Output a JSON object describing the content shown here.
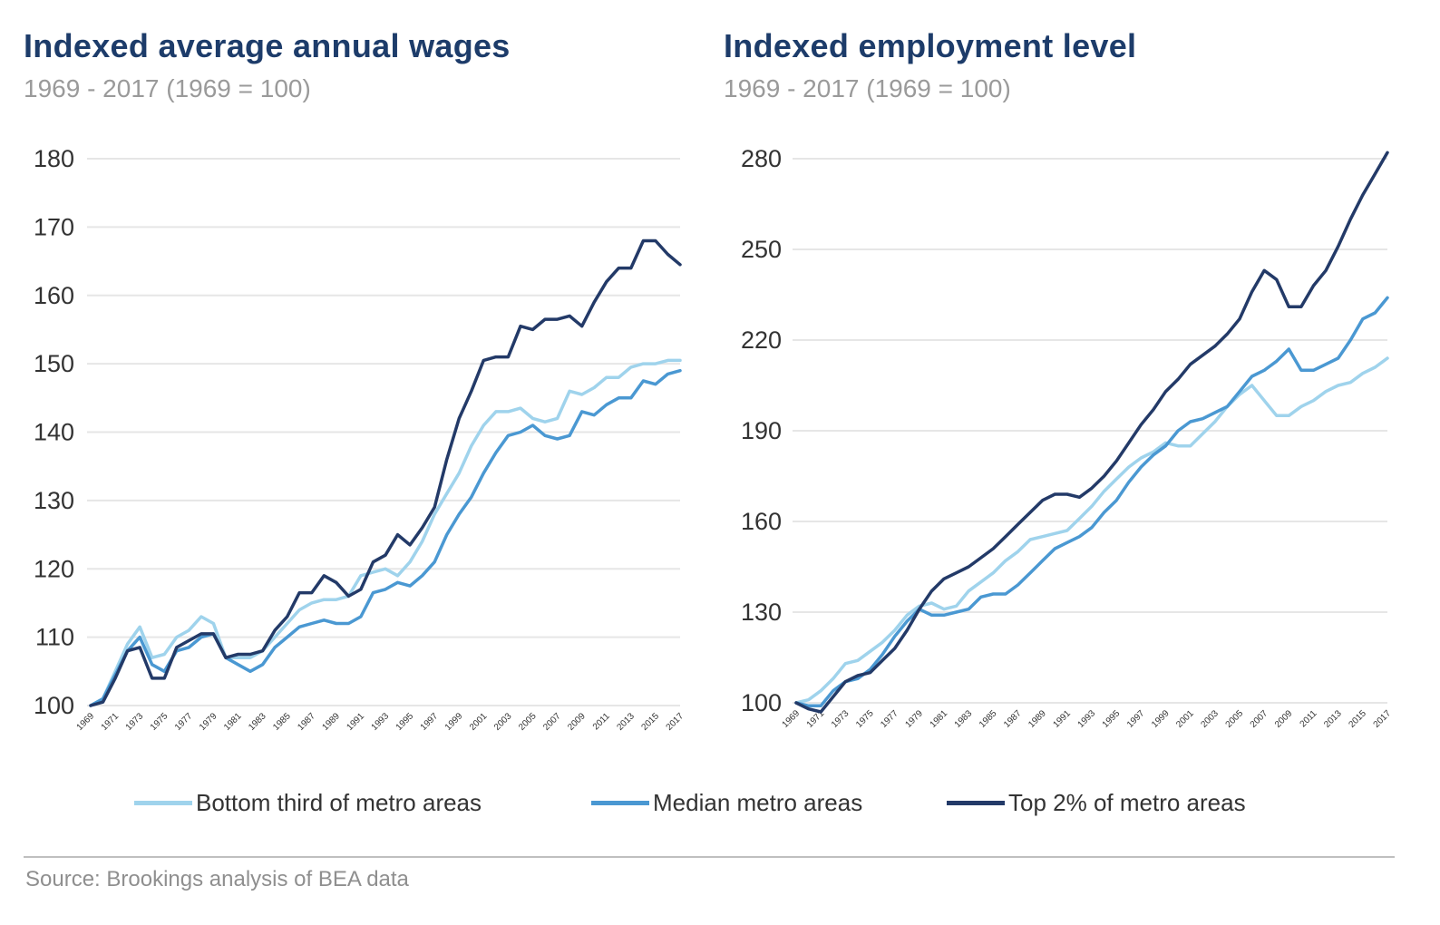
{
  "series_colors": {
    "Bottom third of metro areas": "#9fd3ec",
    "Median metro areas": "#4a98d2",
    "Top 2% of metro areas": "#233a68"
  },
  "title_color": "#1d3c6a",
  "legend": [
    {
      "name": "Bottom third of metro areas",
      "color": "#9fd3ec"
    },
    {
      "name": "Median metro areas",
      "color": "#4a98d2"
    },
    {
      "name": "Top 2% of metro areas",
      "color": "#233a68"
    }
  ],
  "source": "Source: Brookings analysis of BEA data",
  "chart_data": [
    {
      "type": "line",
      "title": "Indexed average annual wages",
      "subtitle": "1969 - 2017 (1969 = 100)",
      "xlabel": "",
      "ylabel": "",
      "ylim": [
        100,
        180
      ],
      "yticks": [
        100,
        110,
        120,
        130,
        140,
        150,
        160,
        170,
        180
      ],
      "grid": true,
      "x": [
        1969,
        1970,
        1971,
        1972,
        1973,
        1974,
        1975,
        1976,
        1977,
        1978,
        1979,
        1980,
        1981,
        1982,
        1983,
        1984,
        1985,
        1986,
        1987,
        1988,
        1989,
        1990,
        1991,
        1992,
        1993,
        1994,
        1995,
        1996,
        1997,
        1998,
        1999,
        2000,
        2001,
        2002,
        2003,
        2004,
        2005,
        2006,
        2007,
        2008,
        2009,
        2010,
        2011,
        2012,
        2013,
        2014,
        2015,
        2016,
        2017
      ],
      "xtick_labels": [
        "1969",
        "1971",
        "1973",
        "1975",
        "1977",
        "1979",
        "1981",
        "1983",
        "1985",
        "1987",
        "1989",
        "1991",
        "1993",
        "1995",
        "1997",
        "1999",
        "2001",
        "2003",
        "2005",
        "2007",
        "2009",
        "2011",
        "2013",
        "2015",
        "2017"
      ],
      "series": [
        {
          "name": "Bottom third of metro areas",
          "values": [
            100,
            101,
            105,
            109,
            111.5,
            107,
            107.5,
            110,
            111,
            113,
            112,
            107,
            107,
            107,
            108,
            110,
            112,
            114,
            115,
            115.5,
            115.5,
            116,
            119,
            119.5,
            120,
            119,
            121,
            124,
            128,
            131,
            134,
            138,
            141,
            143,
            143,
            143.5,
            142,
            141.5,
            142,
            146,
            145.5,
            146.5,
            148,
            148,
            149.5,
            150,
            150,
            150.5,
            150.5
          ]
        },
        {
          "name": "Median metro areas",
          "values": [
            100,
            101,
            104.5,
            108,
            110,
            106,
            105,
            108,
            108.5,
            110,
            110.5,
            107,
            106,
            105,
            106,
            108.5,
            110,
            111.5,
            112,
            112.5,
            112,
            112,
            113,
            116.5,
            117,
            118,
            117.5,
            119,
            121,
            125,
            128,
            130.5,
            134,
            137,
            139.5,
            140,
            141,
            139.5,
            139,
            139.5,
            143,
            142.5,
            144,
            145,
            145,
            147.5,
            147,
            148.5,
            149
          ]
        },
        {
          "name": "Top 2% of metro areas",
          "values": [
            100,
            100.5,
            104,
            108,
            108.5,
            104,
            104,
            108.5,
            109.5,
            110.5,
            110.5,
            107,
            107.5,
            107.5,
            108,
            111,
            113,
            116.5,
            116.5,
            119,
            118,
            116,
            117,
            121,
            122,
            125,
            123.5,
            126,
            129,
            136,
            142,
            146,
            150.5,
            151,
            151,
            155.5,
            155,
            156.5,
            156.5,
            157,
            155.5,
            159,
            162,
            164,
            164,
            168,
            168,
            166,
            164.5
          ]
        }
      ]
    },
    {
      "type": "line",
      "title": "Indexed employment level",
      "subtitle": "1969 - 2017 (1969 = 100)",
      "xlabel": "",
      "ylabel": "",
      "ylim": [
        100,
        280
      ],
      "yticks": [
        100,
        130,
        160,
        190,
        220,
        250,
        280
      ],
      "grid": true,
      "x": [
        1969,
        1970,
        1971,
        1972,
        1973,
        1974,
        1975,
        1976,
        1977,
        1978,
        1979,
        1980,
        1981,
        1982,
        1983,
        1984,
        1985,
        1986,
        1987,
        1988,
        1989,
        1990,
        1991,
        1992,
        1993,
        1994,
        1995,
        1996,
        1997,
        1998,
        1999,
        2000,
        2001,
        2002,
        2003,
        2004,
        2005,
        2006,
        2007,
        2008,
        2009,
        2010,
        2011,
        2012,
        2013,
        2014,
        2015,
        2016,
        2017
      ],
      "xtick_labels": [
        "1969",
        "1971",
        "1973",
        "1975",
        "1977",
        "1979",
        "1981",
        "1983",
        "1985",
        "1987",
        "1989",
        "1991",
        "1993",
        "1995",
        "1997",
        "1999",
        "2001",
        "2003",
        "2005",
        "2007",
        "2009",
        "2011",
        "2013",
        "2015",
        "2017"
      ],
      "series": [
        {
          "name": "Bottom third of metro areas",
          "values": [
            100,
            101,
            104,
            108,
            113,
            114,
            117,
            120,
            124,
            129,
            132,
            133,
            131,
            132,
            137,
            140,
            143,
            147,
            150,
            154,
            155,
            156,
            157,
            161,
            165,
            170,
            174,
            178,
            181,
            183,
            186,
            185,
            185,
            189,
            193,
            198,
            202,
            205,
            200,
            195,
            195,
            198,
            200,
            203,
            205,
            206,
            209,
            211,
            214
          ]
        },
        {
          "name": "Median metro areas",
          "values": [
            100,
            99,
            99,
            104,
            107,
            108,
            111,
            116,
            122,
            127,
            131,
            129,
            129,
            130,
            131,
            135,
            136,
            136,
            139,
            143,
            147,
            151,
            153,
            155,
            158,
            163,
            167,
            173,
            178,
            182,
            185,
            190,
            193,
            194,
            196,
            198,
            203,
            208,
            210,
            213,
            217,
            210,
            210,
            212,
            214,
            220,
            227,
            229,
            234
          ]
        },
        {
          "name": "Top 2% of metro areas",
          "values": [
            100,
            98,
            97,
            102,
            107,
            109,
            110,
            114,
            118,
            124,
            131,
            137,
            141,
            143,
            145,
            148,
            151,
            155,
            159,
            163,
            167,
            169,
            169,
            168,
            171,
            175,
            180,
            186,
            192,
            197,
            203,
            207,
            212,
            215,
            218,
            222,
            227,
            236,
            243,
            240,
            231,
            231,
            238,
            243,
            251,
            260,
            268,
            275,
            282
          ]
        }
      ]
    }
  ]
}
